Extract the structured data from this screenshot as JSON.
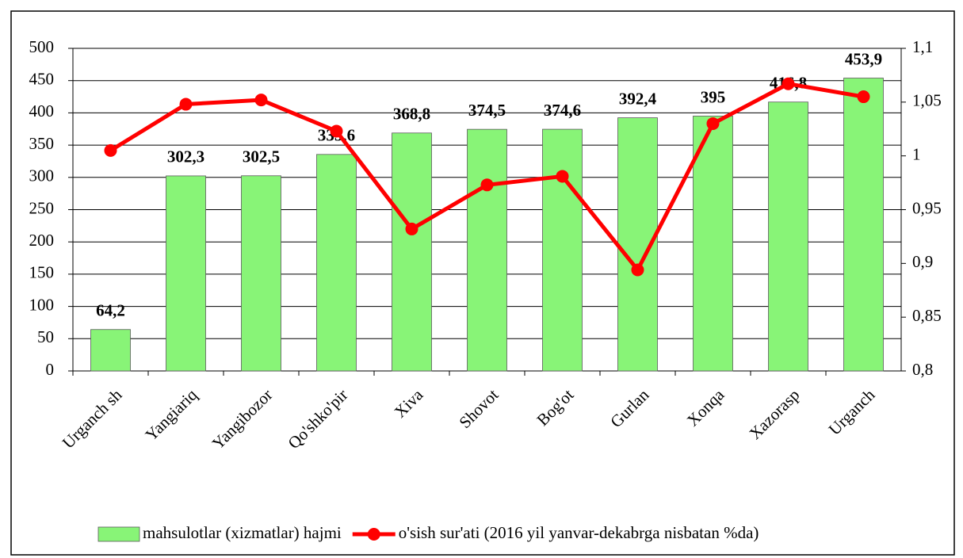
{
  "chart_data": {
    "type": "bar",
    "categories": [
      "Urganch sh",
      "Yangiariq",
      "Yangibozor",
      "Qo'shko'pir",
      "Xiva",
      "Shovot",
      "Bog'ot",
      "Gurlan",
      "Xonqa",
      "Xazorasp",
      "Urganch"
    ],
    "series": [
      {
        "name": "mahsulotlar (xizmatlar) hajmi",
        "type": "bar",
        "color": "#88f477",
        "axis": "y",
        "values": [
          64.2,
          302.3,
          302.5,
          335.6,
          368.8,
          374.5,
          374.6,
          392.4,
          395,
          416.8,
          453.9
        ],
        "value_labels": [
          "64,2",
          "302,3",
          "302,5",
          "335,6",
          "368,8",
          "374,5",
          "374,6",
          "392,4",
          "395",
          "416,8",
          "453,9"
        ]
      },
      {
        "name": "o'sish sur'ati (2016 yil yanvar-dekabrga nisbatan %da)",
        "type": "line",
        "color": "#ff0000",
        "axis": "y2",
        "values": [
          1.005,
          1.048,
          1.052,
          1.023,
          0.932,
          0.973,
          0.981,
          0.894,
          1.03,
          1.067,
          1.055
        ]
      }
    ],
    "ylim": [
      0,
      500
    ],
    "yticks": [
      0,
      50,
      100,
      150,
      200,
      250,
      300,
      350,
      400,
      450,
      500
    ],
    "y2lim": [
      0.8,
      1.1
    ],
    "y2ticks": [
      {
        "value": 0.8,
        "label": "0,8"
      },
      {
        "value": 0.85,
        "label": "0,85"
      },
      {
        "value": 0.9,
        "label": "0,9"
      },
      {
        "value": 0.95,
        "label": "0,95"
      },
      1,
      {
        "value": 1.05,
        "label": "1,05"
      },
      {
        "value": 1.1,
        "label": "1,1"
      }
    ],
    "grid": true,
    "legend": "bottom"
  }
}
